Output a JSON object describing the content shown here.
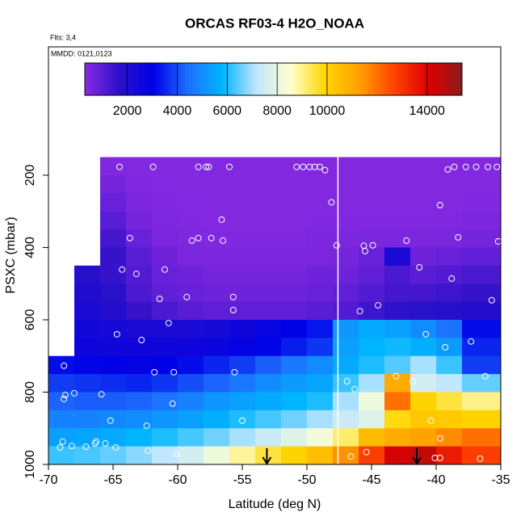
{
  "chart_data": {
    "type": "heatmap",
    "title": "ORCAS RF03-4 H2O_NOAA",
    "flights_note": "Flts: 3,4",
    "date_note": "MMDD: 0121,0123",
    "x_label": "Latitude (deg N)",
    "y_label": "PSXC (mbar)",
    "xlim": [
      -70,
      -35
    ],
    "ylim": [
      1000,
      -155
    ],
    "xticks": [
      -70,
      -65,
      -60,
      -55,
      -50,
      -45,
      -40,
      -35
    ],
    "yticks": [
      200,
      400,
      600,
      800,
      1000
    ],
    "lat_edges": [
      -70,
      -68,
      -66,
      -64,
      -62,
      -60,
      -58,
      -56,
      -54,
      -52,
      -50,
      -48,
      -46,
      -44,
      -42,
      -40,
      -38,
      -35
    ],
    "pressure_edges": [
      150,
      200,
      250,
      300,
      350,
      400,
      450,
      500,
      550,
      600,
      650,
      700,
      750,
      800,
      850,
      900,
      950,
      1000
    ],
    "values": [
      [
        null,
        null,
        450,
        420,
        420,
        420,
        420,
        420,
        420,
        420,
        420,
        420,
        420,
        420,
        420,
        420,
        420
      ],
      [
        null,
        null,
        600,
        450,
        430,
        420,
        420,
        420,
        420,
        420,
        420,
        420,
        420,
        420,
        420,
        420,
        420
      ],
      [
        null,
        null,
        800,
        500,
        450,
        430,
        420,
        420,
        420,
        420,
        420,
        420,
        420,
        420,
        420,
        420,
        450
      ],
      [
        null,
        null,
        1000,
        600,
        480,
        450,
        430,
        420,
        420,
        420,
        450,
        450,
        450,
        450,
        450,
        450,
        500
      ],
      [
        null,
        null,
        1300,
        800,
        550,
        480,
        450,
        450,
        450,
        450,
        500,
        500,
        550,
        550,
        550,
        550,
        600
      ],
      [
        null,
        null,
        1500,
        1000,
        700,
        550,
        500,
        500,
        500,
        500,
        550,
        600,
        800,
        2200,
        700,
        800,
        900
      ],
      [
        null,
        1800,
        1500,
        1100,
        800,
        700,
        600,
        600,
        600,
        600,
        700,
        700,
        900,
        1200,
        1000,
        1100,
        1200
      ],
      [
        null,
        2000,
        1700,
        1200,
        900,
        800,
        700,
        700,
        700,
        700,
        800,
        900,
        1100,
        1300,
        1300,
        1400,
        1500
      ],
      [
        null,
        2200,
        1900,
        1500,
        1200,
        1000,
        900,
        900,
        900,
        900,
        1000,
        1100,
        1400,
        1600,
        1700,
        1800,
        1900
      ],
      [
        null,
        2400,
        2300,
        2200,
        2200,
        2200,
        2300,
        2500,
        2800,
        3000,
        3300,
        5200,
        5600,
        5400,
        5000,
        4500,
        3200
      ],
      [
        null,
        2600,
        2500,
        2500,
        2500,
        2600,
        2700,
        2900,
        3100,
        3400,
        3700,
        5400,
        5800,
        5900,
        5700,
        5300,
        3500
      ],
      [
        3200,
        3100,
        3000,
        2900,
        3000,
        3200,
        3500,
        3800,
        4200,
        4600,
        5000,
        5600,
        6000,
        6400,
        7000,
        6200,
        3800
      ],
      [
        3800,
        3700,
        3600,
        3500,
        3700,
        4000,
        4300,
        4600,
        5000,
        5300,
        5500,
        6200,
        7000,
        11000,
        7600,
        7200,
        6500
      ],
      [
        4300,
        4200,
        4200,
        4300,
        4500,
        4800,
        5200,
        5400,
        5600,
        5800,
        6000,
        7000,
        8200,
        12000,
        10000,
        9500,
        9000
      ],
      [
        4800,
        4800,
        4900,
        5000,
        5200,
        5400,
        5700,
        6000,
        6300,
        6600,
        7000,
        7400,
        7800,
        9800,
        10300,
        10200,
        10000
      ],
      [
        5400,
        5500,
        5600,
        5800,
        6000,
        6300,
        6600,
        7000,
        7400,
        7800,
        8300,
        9200,
        10600,
        11000,
        11200,
        11600,
        12000
      ],
      [
        6200,
        6300,
        6500,
        6800,
        7200,
        7600,
        8200,
        8900,
        9500,
        10000,
        10500,
        11500,
        12800,
        14200,
        14500,
        13500,
        12800
      ]
    ],
    "colorscale": [
      "#8a2be2",
      "#2a10c8",
      "#0000e6",
      "#1e6fff",
      "#00b4ff",
      "#bfe6ff",
      "#ffffd0",
      "#ffd700",
      "#ffa000",
      "#ff4500",
      "#e00000",
      "#8b1a1a"
    ],
    "colorbar_lim": [
      300,
      15400
    ],
    "colorbar_ticks": [
      2000,
      4000,
      6000,
      8000,
      10000,
      14000
    ],
    "vlines": [
      -47.6
    ],
    "points": {
      "x": [
        -64.5,
        -61.9,
        -58.4,
        -57.8,
        -57.6,
        -56,
        -50.8,
        -50.3,
        -49.8,
        -49.4,
        -49,
        -48.6,
        -48.1,
        -47.7,
        -45.6,
        -44.9,
        -45.5,
        -42.3,
        -41.3,
        -38.8,
        -39.7,
        -39.1,
        -38.6,
        -37.7,
        -36.9,
        -36,
        -35.3,
        -38.3,
        -35.2,
        -35.7,
        -63.7,
        -64.3,
        -63.2,
        -61,
        -58.9,
        -58.4,
        -57.4,
        -56.5,
        -56.6,
        -61.4,
        -59.3,
        -55.7,
        -55.7,
        -60.7,
        -64.7,
        -62.8,
        -45.9,
        -44.5,
        -40.8,
        -39.3,
        -37.3,
        -36.2,
        -61.8,
        -60.3,
        -55.6,
        -46.9,
        -46.3,
        -43.1,
        -41.8,
        -68.8,
        -68.7,
        -68,
        -68.8,
        -65.9,
        -60.4,
        -65.2,
        -62.4,
        -55,
        -40.4,
        -68.9,
        -69.1,
        -68.2,
        -66.4,
        -66.3,
        -65.6,
        -67.1,
        -64.8,
        -62.3,
        -60.1,
        -46.6,
        -45.4,
        -40.1,
        -39.7,
        -36.6,
        -39.7
      ],
      "y": [
        177,
        177,
        177,
        177,
        177,
        177,
        177,
        177,
        177,
        177,
        177,
        186,
        275,
        394,
        395,
        394,
        410,
        381,
        455,
        486,
        283,
        184,
        177,
        177,
        177,
        177,
        177,
        372,
        383,
        546,
        374,
        461,
        473,
        461,
        381,
        374,
        374,
        381,
        323,
        542,
        537,
        537,
        573,
        609,
        640,
        656,
        576,
        560,
        640,
        676,
        660,
        756,
        745,
        745,
        745,
        770,
        792,
        756,
        770,
        727,
        808,
        803,
        819,
        806,
        832,
        879,
        893,
        879,
        879,
        937,
        953,
        949,
        942,
        937,
        942,
        951,
        953,
        962,
        971,
        978,
        966,
        982,
        928,
        984,
        982
      ]
    },
    "arrows_x": [
      -53.1,
      -41.5
    ]
  }
}
